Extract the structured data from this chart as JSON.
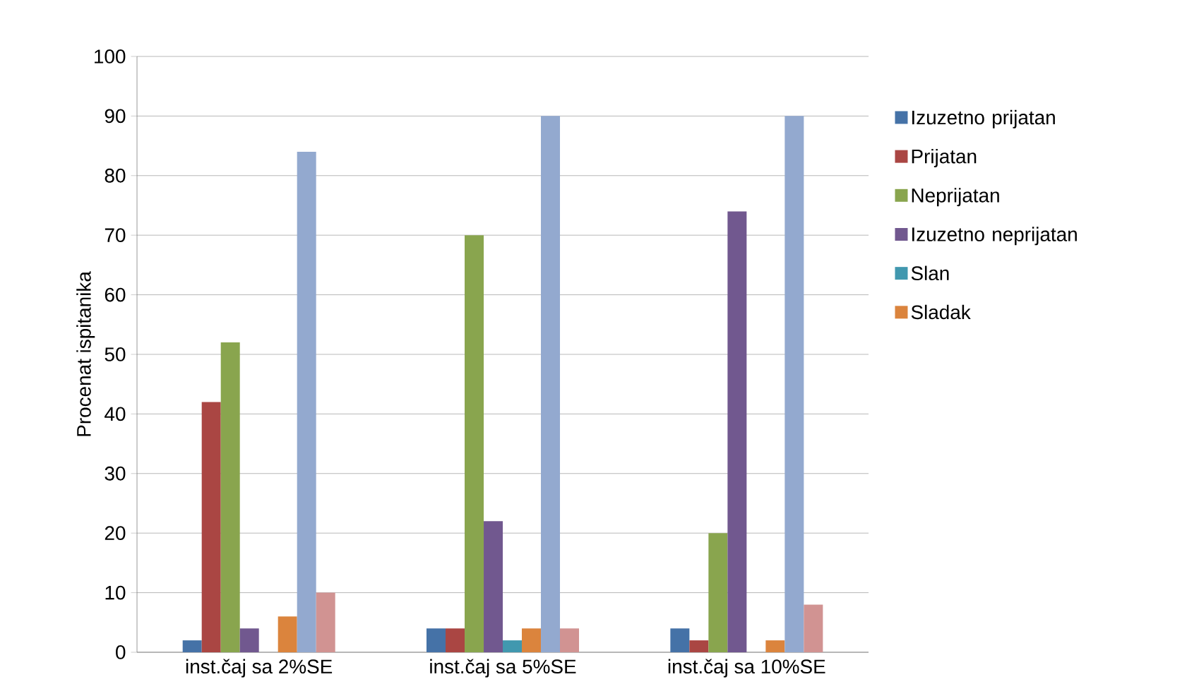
{
  "chart_data": {
    "type": "bar",
    "ylabel": "Procenat ispitanika",
    "categories": [
      "inst.čaj sa 2%SE",
      "inst.čaj sa 5%SE",
      "inst.čaj sa 10%SE"
    ],
    "series": [
      {
        "name": "Izuzetno prijatan",
        "color": "#4572a7",
        "values": [
          2,
          4,
          4
        ]
      },
      {
        "name": "Prijatan",
        "color": "#aa4643",
        "values": [
          42,
          4,
          2
        ]
      },
      {
        "name": "Neprijatan",
        "color": "#89a54e",
        "values": [
          52,
          70,
          20
        ]
      },
      {
        "name": "Izuzetno neprijatan",
        "color": "#71588f",
        "values": [
          4,
          22,
          74
        ]
      },
      {
        "name": "Slan",
        "color": "#4198af",
        "values": [
          0,
          2,
          0
        ]
      },
      {
        "name": "Sladak",
        "color": "#db843d",
        "values": [
          6,
          4,
          2
        ]
      },
      {
        "color": "#93a9cf",
        "values": [
          84,
          90,
          90
        ]
      },
      {
        "color": "#d19392",
        "values": [
          10,
          4,
          8
        ]
      }
    ],
    "ylim": [
      0,
      100
    ],
    "yticks": [
      0,
      10,
      20,
      30,
      40,
      50,
      60,
      70,
      80,
      90,
      100
    ],
    "grid": "y",
    "legend": "right"
  }
}
